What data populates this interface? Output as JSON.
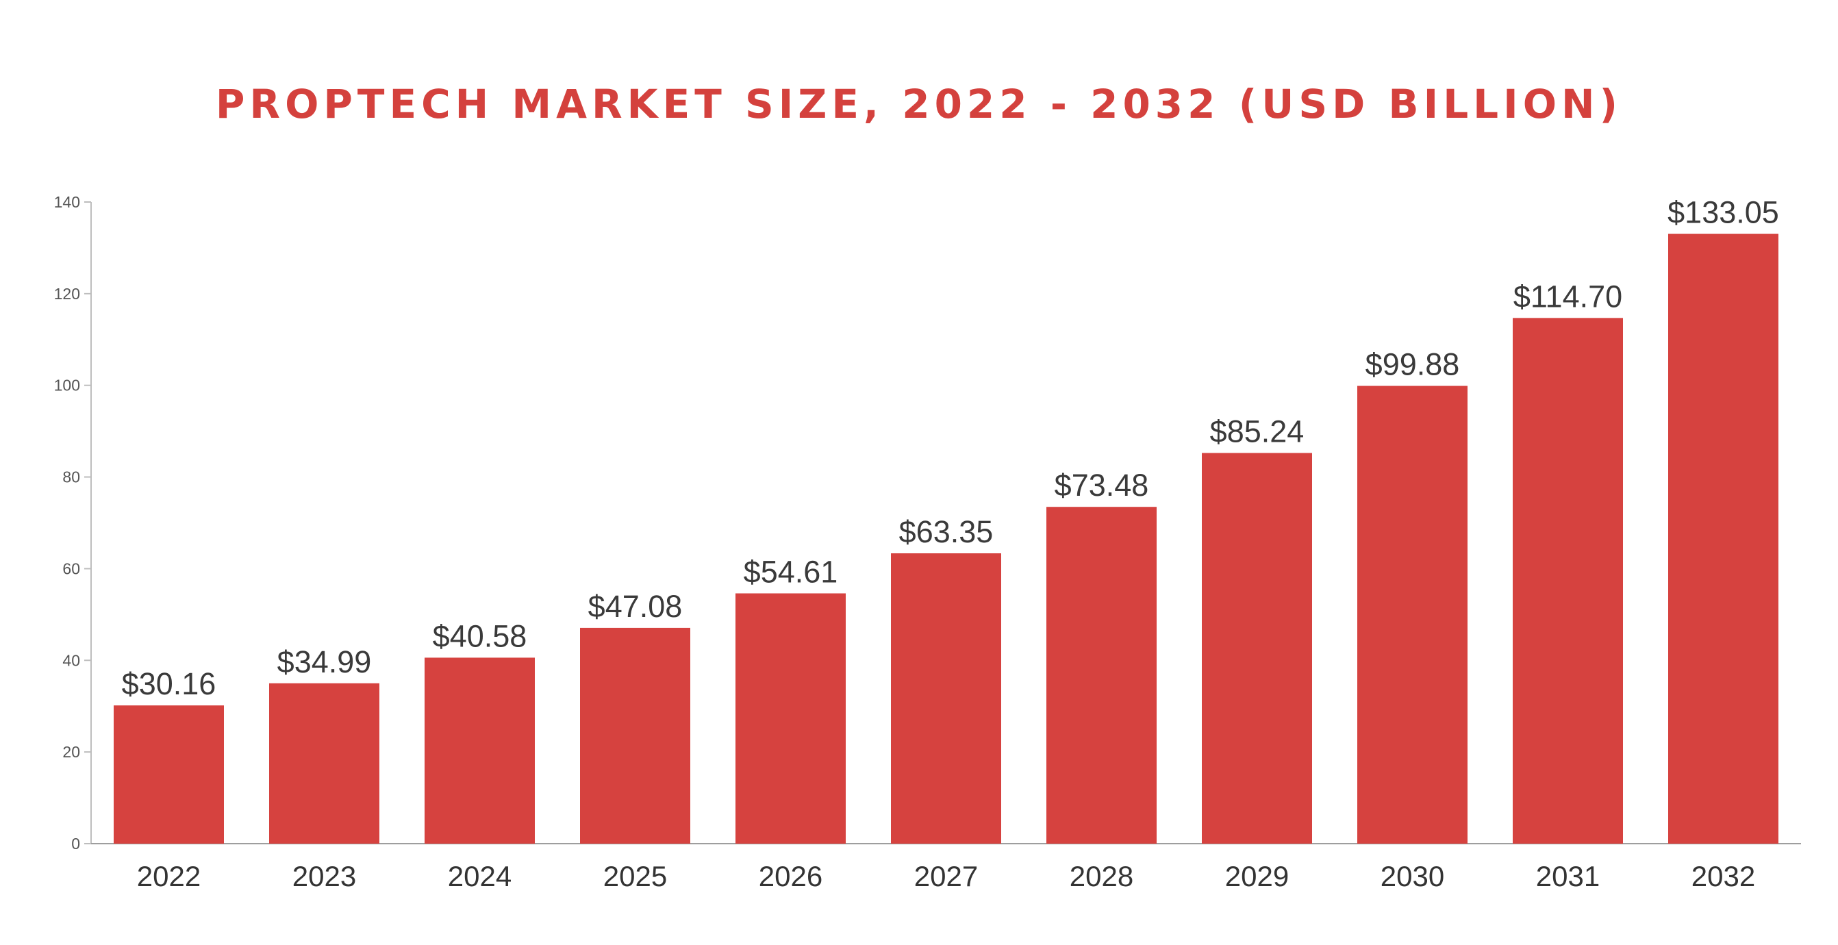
{
  "chart_data": {
    "type": "bar",
    "title": "PROPTECH MARKET SIZE, 2022 - 2032 (USD BILLION)",
    "xlabel": "",
    "ylabel": "",
    "categories": [
      "2022",
      "2023",
      "2024",
      "2025",
      "2026",
      "2027",
      "2028",
      "2029",
      "2030",
      "2031",
      "2032"
    ],
    "values": [
      30.16,
      34.99,
      40.58,
      47.08,
      54.61,
      63.35,
      73.48,
      85.24,
      99.88,
      114.7,
      133.05
    ],
    "data_labels": [
      "$30.16",
      "$34.99",
      "$40.58",
      "$47.08",
      "$54.61",
      "$63.35",
      "$73.48",
      "$85.24",
      "$99.88",
      "$114.70",
      "$133.05"
    ],
    "yticks": [
      "0",
      "20",
      "40",
      "60",
      "80",
      "100",
      "120",
      "140"
    ],
    "ylim": [
      0,
      140
    ],
    "grid": false,
    "bar_color": "#d6423f",
    "title_color": "#d4413d"
  }
}
